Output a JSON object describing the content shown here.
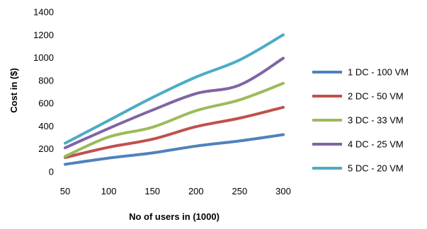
{
  "chart_data": {
    "type": "line",
    "title": "",
    "xlabel": "No of users in (1000)",
    "ylabel": "Cost in ($)",
    "x": [
      50,
      100,
      150,
      200,
      250,
      300
    ],
    "xticks": [
      "50",
      "100",
      "150",
      "200",
      "250",
      "300"
    ],
    "xlim": [
      50,
      300
    ],
    "ylim": [
      0,
      1400
    ],
    "yticks": [
      "0",
      "200",
      "400",
      "600",
      "800",
      "1000",
      "1200",
      "1400"
    ],
    "grid": false,
    "legend_position": "right",
    "series": [
      {
        "name": "1 DC - 100 VM",
        "color": "#4f81bd",
        "values": [
          65,
          120,
          165,
          225,
          270,
          325
        ]
      },
      {
        "name": "2 DC - 50 VM",
        "color": "#c0504d",
        "values": [
          125,
          215,
          285,
          395,
          470,
          565
        ]
      },
      {
        "name": "3 DC - 33 VM",
        "color": "#9bbb59",
        "values": [
          135,
          305,
          390,
          535,
          630,
          775
        ]
      },
      {
        "name": "4 DC - 25 VM",
        "color": "#8064a2",
        "values": [
          210,
          380,
          540,
          685,
          760,
          995
        ]
      },
      {
        "name": "5 DC - 20 VM",
        "color": "#4bacc6",
        "values": [
          250,
          450,
          650,
          830,
          980,
          1200
        ]
      }
    ]
  }
}
